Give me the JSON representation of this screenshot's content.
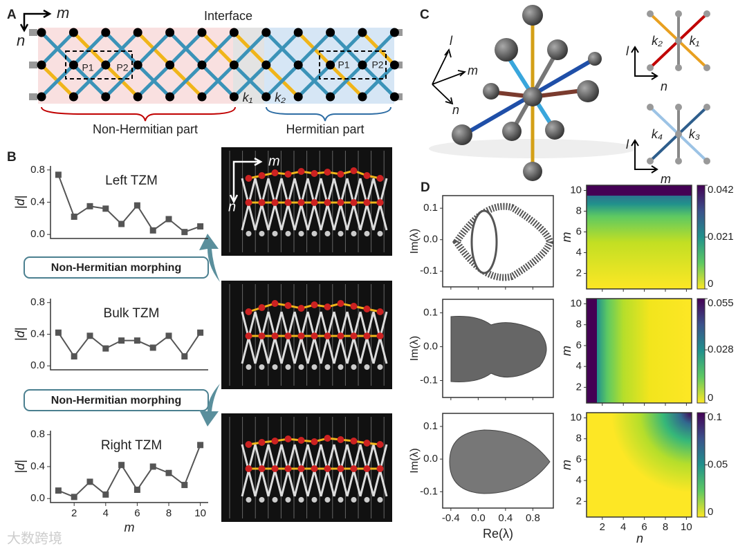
{
  "panels": {
    "a": "A",
    "b": "B",
    "c": "C",
    "d": "D"
  },
  "panel_a": {
    "m": "m",
    "n": "n",
    "interface": "Interface",
    "cells": [
      {
        "p1": "P1",
        "p2": "P2"
      },
      {
        "p1": "P1",
        "p2": "P2"
      }
    ],
    "k1": "k₁",
    "k2": "k₂",
    "non_hermitian_part": "Non-Hermitian part",
    "hermitian_part": "Hermitian part"
  },
  "panel_b": {
    "morphing": [
      "Non-Hermitian morphing",
      "Non-Hermitian morphing"
    ],
    "photo_m": "m",
    "photo_n": "n"
  },
  "panel_c": {
    "l": "l",
    "m": "m",
    "n": "n",
    "top": {
      "k2": "k₂",
      "k1": "k₁",
      "l": "l",
      "n": "n"
    },
    "bottom": {
      "k4": "k₄",
      "k3": "k₃",
      "l": "l",
      "m": "m"
    }
  },
  "panel_d": {
    "spectra": {
      "ylabel": "Im(λ)",
      "xlabel": "Re(λ)",
      "xlim": [
        -0.52,
        1.1
      ],
      "ylim": [
        -0.15,
        0.14
      ],
      "xticks": [
        -0.4,
        {
          "value": 0,
          "label": "0.0"
        },
        0.4,
        0.8
      ],
      "yticks": [
        0.1,
        {
          "value": 0,
          "label": "0.0"
        },
        -0.1
      ]
    },
    "heatmaps": {
      "ylabel": "m",
      "xlabel": "n",
      "xlim": [
        0.5,
        10.5
      ],
      "ylim": [
        0.5,
        10.5
      ],
      "xticks": [
        2,
        4,
        6,
        8,
        10
      ],
      "yticks": [
        2,
        4,
        6,
        8,
        10
      ],
      "colorbars": [
        {
          "lim": [
            0,
            0.042
          ],
          "ticks": [
            0,
            0.021,
            0.042
          ]
        },
        {
          "lim": [
            0,
            0.055
          ],
          "ticks": [
            0,
            0.028,
            0.055
          ]
        },
        {
          "lim": [
            0,
            0.1
          ],
          "ticks": [
            0,
            0.05,
            0.1
          ]
        }
      ]
    }
  },
  "watermark": "大数跨境",
  "chart_data": [
    {
      "type": "line",
      "title": "Left TZM",
      "ylabel": "|d|",
      "color": "#555555",
      "x": [
        1,
        2,
        3,
        4,
        5,
        6,
        7,
        8,
        9,
        10
      ],
      "values": [
        0.74,
        0.22,
        0.35,
        0.32,
        0.13,
        0.36,
        0.05,
        0.19,
        0.03,
        0.1
      ],
      "xlim": [
        0.5,
        10.5
      ],
      "ylim": [
        -0.05,
        0.85
      ],
      "yticks": [
        {
          "value": 0,
          "label": "0.0"
        },
        0.4,
        0.8
      ]
    },
    {
      "type": "line",
      "title": "Bulk TZM",
      "ylabel": "|d|",
      "color": "#555555",
      "x": [
        1,
        2,
        3,
        4,
        5,
        6,
        7,
        8,
        9,
        10
      ],
      "values": [
        0.42,
        0.12,
        0.38,
        0.22,
        0.32,
        0.32,
        0.23,
        0.38,
        0.12,
        0.42
      ],
      "xlim": [
        0.5,
        10.5
      ],
      "ylim": [
        -0.05,
        0.85
      ],
      "yticks": [
        {
          "value": 0,
          "label": "0.0"
        },
        0.4,
        0.8
      ]
    },
    {
      "type": "line",
      "title": "Right TZM",
      "ylabel": "|d|",
      "xlabel": "m",
      "color": "#555555",
      "x": [
        1,
        2,
        3,
        4,
        5,
        6,
        7,
        8,
        9,
        10
      ],
      "values": [
        0.1,
        0.02,
        0.21,
        0.05,
        0.42,
        0.11,
        0.4,
        0.32,
        0.17,
        0.67
      ],
      "xlim": [
        0.5,
        10.5
      ],
      "ylim": [
        -0.05,
        0.85
      ],
      "xticks": [
        2,
        4,
        6,
        8,
        10
      ],
      "yticks": [
        {
          "value": 0,
          "label": "0.0"
        },
        0.4,
        0.8
      ]
    }
  ]
}
